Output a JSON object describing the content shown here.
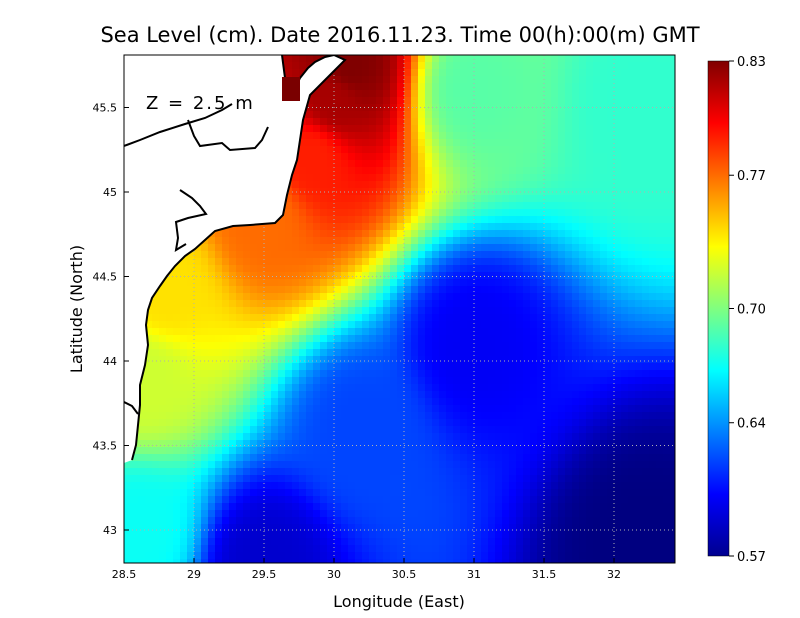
{
  "chart_data": {
    "type": "heatmap",
    "title": "Sea Level (cm). Date 2016.11.23. Time 00(h):00(m) GMT",
    "xlabel": "Longitude (East)",
    "ylabel": "Latitude (North)",
    "annotation": "Z = 2.5 m",
    "x_ticks": [
      "28.5",
      "29",
      "29.5",
      "30",
      "30.5",
      "31",
      "31.5",
      "32"
    ],
    "y_ticks": [
      "43",
      "43.5",
      "44",
      "44.5",
      "45",
      "45.5"
    ],
    "x_tick_values": [
      28.5,
      29,
      29.5,
      30,
      30.5,
      31,
      31.5,
      32
    ],
    "y_tick_values": [
      43,
      43.5,
      44,
      44.5,
      45,
      45.5
    ],
    "xlim": [
      28.5,
      32.4
    ],
    "ylim": [
      42.8,
      45.8
    ],
    "colorbar": {
      "ticks": [
        "0.83",
        "0.77",
        "0.70",
        "0.64",
        "0.57"
      ],
      "tick_values": [
        0.83,
        0.77,
        0.7,
        0.64,
        0.57
      ],
      "range": [
        0.57,
        0.83
      ],
      "colormap": "jet"
    },
    "grid": true,
    "field_centers": [
      {
        "lon": 30.1,
        "lat": 45.75,
        "value": 0.83
      },
      {
        "lon": 30.0,
        "lat": 45.55,
        "value": 0.82
      },
      {
        "lon": 29.85,
        "lat": 45.2,
        "value": 0.79
      },
      {
        "lon": 29.5,
        "lat": 44.85,
        "value": 0.77
      },
      {
        "lon": 28.8,
        "lat": 44.4,
        "value": 0.74
      },
      {
        "lon": 28.65,
        "lat": 43.9,
        "value": 0.72
      },
      {
        "lon": 31.0,
        "lat": 45.6,
        "value": 0.69
      },
      {
        "lon": 32.2,
        "lat": 45.5,
        "value": 0.68
      },
      {
        "lon": 31.0,
        "lat": 44.1,
        "value": 0.6
      },
      {
        "lon": 32.2,
        "lat": 42.9,
        "value": 0.57
      },
      {
        "lon": 29.5,
        "lat": 42.8,
        "value": 0.59
      },
      {
        "lon": 30.2,
        "lat": 43.6,
        "value": 0.62
      },
      {
        "lon": 28.6,
        "lat": 43.0,
        "value": 0.67
      }
    ]
  }
}
